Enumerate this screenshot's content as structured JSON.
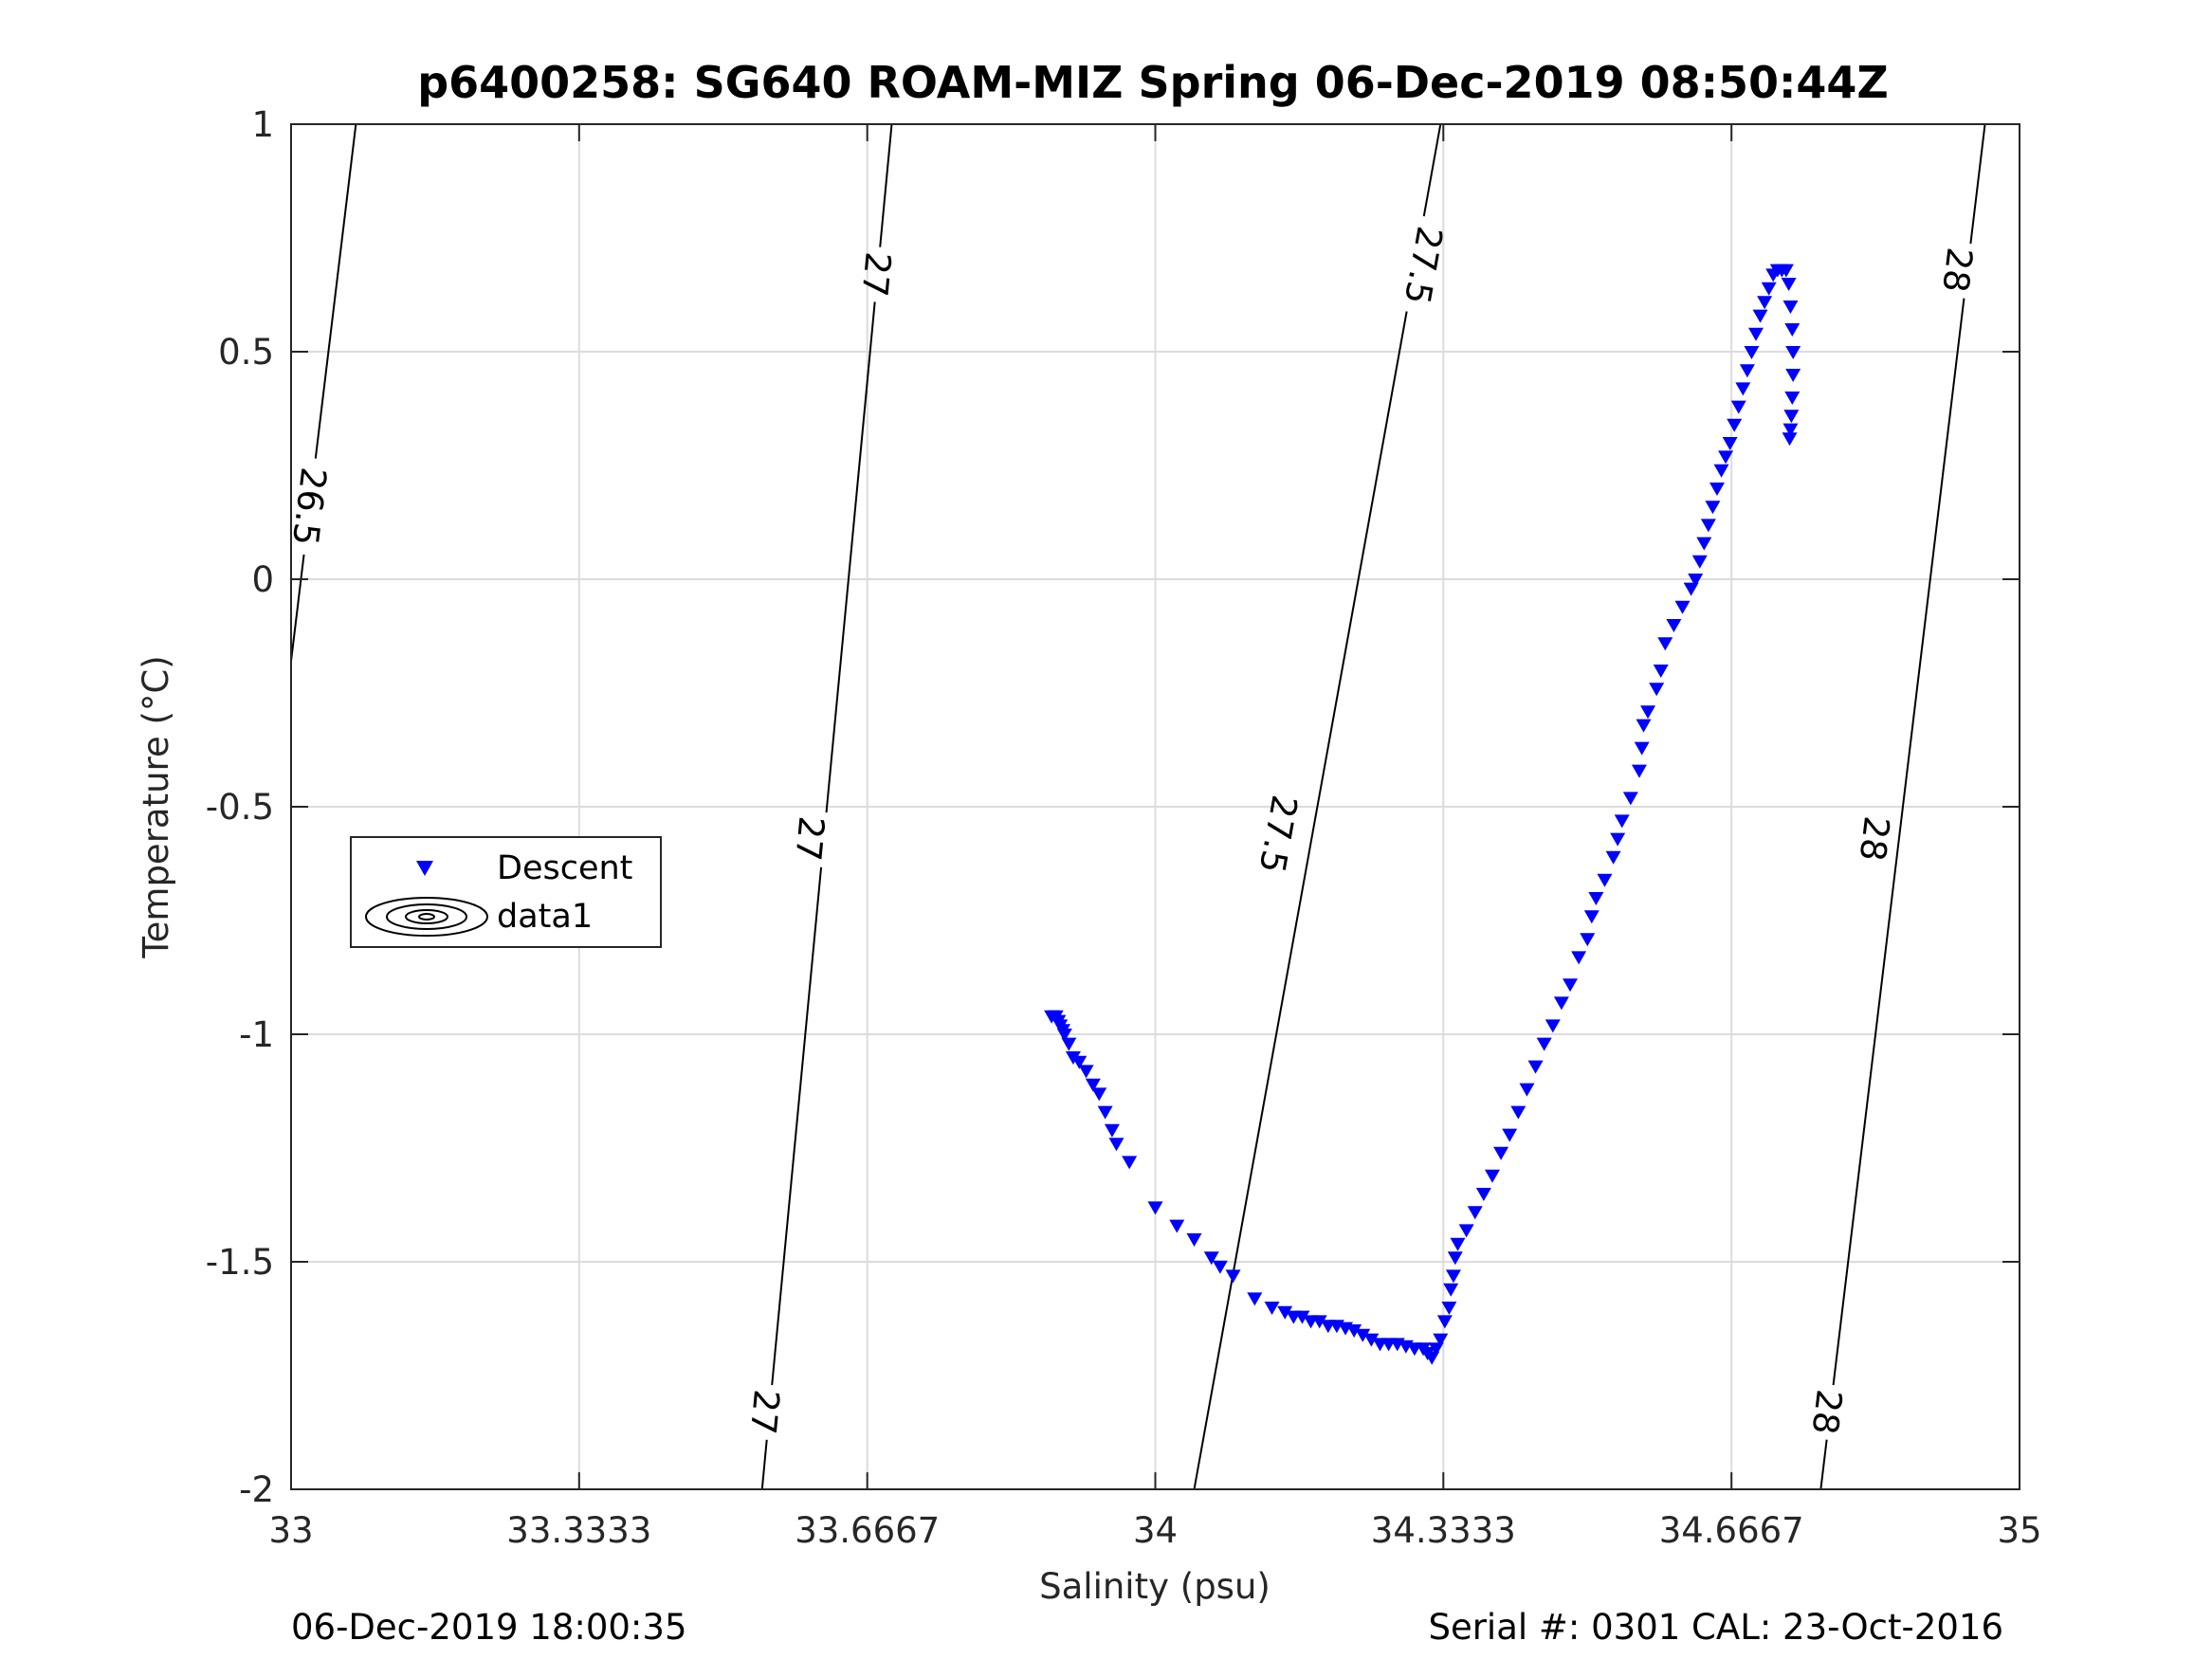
{
  "chart_data": {
    "type": "scatter",
    "title": "p6400258: SG640 ROAM-MIZ Spring 06-Dec-2019 08:50:44Z",
    "xlabel": "Salinity (psu)",
    "ylabel": "Temperature (°C)",
    "xlim": [
      33,
      35
    ],
    "ylim": [
      -2,
      1
    ],
    "xticks": [
      33,
      33.3333,
      33.6667,
      34,
      34.3333,
      34.6667,
      35
    ],
    "xtick_labels": [
      "33",
      "33.3333",
      "33.6667",
      "34",
      "34.3333",
      "34.6667",
      "35"
    ],
    "yticks": [
      -2,
      -1.5,
      -1,
      -0.5,
      0,
      0.5,
      1
    ],
    "ytick_labels": [
      "-2",
      "-1.5",
      "-1",
      "-0.5",
      "0",
      "0.5",
      "1"
    ],
    "grid": true,
    "legend_position": "middle-left",
    "legend": [
      "Descent",
      "data1"
    ],
    "footer_left": "06-Dec-2019 18:00:35",
    "footer_right": "Serial #: 0301  CAL: 23-Oct-2016",
    "series": [
      {
        "name": "Descent",
        "marker": "down-triangle",
        "color": "#0000ff",
        "points": [
          [
            33.88,
            -0.96
          ],
          [
            33.885,
            -0.96
          ],
          [
            33.888,
            -0.97
          ],
          [
            33.89,
            -0.98
          ],
          [
            33.893,
            -0.99
          ],
          [
            33.895,
            -1.0
          ],
          [
            33.9,
            -1.02
          ],
          [
            33.905,
            -1.05
          ],
          [
            33.912,
            -1.06
          ],
          [
            33.92,
            -1.08
          ],
          [
            33.928,
            -1.11
          ],
          [
            33.935,
            -1.13
          ],
          [
            33.942,
            -1.17
          ],
          [
            33.95,
            -1.21
          ],
          [
            33.955,
            -1.24
          ],
          [
            33.97,
            -1.28
          ],
          [
            34.0,
            -1.38
          ],
          [
            34.025,
            -1.42
          ],
          [
            34.045,
            -1.45
          ],
          [
            34.065,
            -1.49
          ],
          [
            34.075,
            -1.51
          ],
          [
            34.09,
            -1.53
          ],
          [
            34.115,
            -1.58
          ],
          [
            34.135,
            -1.6
          ],
          [
            34.15,
            -1.61
          ],
          [
            34.16,
            -1.62
          ],
          [
            34.17,
            -1.62
          ],
          [
            34.18,
            -1.63
          ],
          [
            34.19,
            -1.63
          ],
          [
            34.2,
            -1.64
          ],
          [
            34.21,
            -1.64
          ],
          [
            34.22,
            -1.645
          ],
          [
            34.23,
            -1.65
          ],
          [
            34.24,
            -1.66
          ],
          [
            34.25,
            -1.67
          ],
          [
            34.26,
            -1.68
          ],
          [
            34.27,
            -1.68
          ],
          [
            34.28,
            -1.68
          ],
          [
            34.29,
            -1.685
          ],
          [
            34.3,
            -1.69
          ],
          [
            34.31,
            -1.69
          ],
          [
            34.315,
            -1.7
          ],
          [
            34.32,
            -1.71
          ],
          [
            34.325,
            -1.69
          ],
          [
            34.33,
            -1.67
          ],
          [
            34.335,
            -1.63
          ],
          [
            34.34,
            -1.6
          ],
          [
            34.342,
            -1.56
          ],
          [
            34.345,
            -1.53
          ],
          [
            34.347,
            -1.49
          ],
          [
            34.35,
            -1.46
          ],
          [
            34.36,
            -1.43
          ],
          [
            34.37,
            -1.39
          ],
          [
            34.38,
            -1.35
          ],
          [
            34.39,
            -1.31
          ],
          [
            34.4,
            -1.26
          ],
          [
            34.41,
            -1.22
          ],
          [
            34.42,
            -1.17
          ],
          [
            34.43,
            -1.12
          ],
          [
            34.44,
            -1.07
          ],
          [
            34.45,
            -1.02
          ],
          [
            34.46,
            -0.98
          ],
          [
            34.47,
            -0.93
          ],
          [
            34.48,
            -0.89
          ],
          [
            34.49,
            -0.83
          ],
          [
            34.5,
            -0.79
          ],
          [
            34.505,
            -0.74
          ],
          [
            34.51,
            -0.7
          ],
          [
            34.52,
            -0.66
          ],
          [
            34.53,
            -0.61
          ],
          [
            34.535,
            -0.57
          ],
          [
            34.54,
            -0.53
          ],
          [
            34.55,
            -0.48
          ],
          [
            34.56,
            -0.42
          ],
          [
            34.563,
            -0.37
          ],
          [
            34.565,
            -0.32
          ],
          [
            34.57,
            -0.29
          ],
          [
            34.58,
            -0.24
          ],
          [
            34.585,
            -0.2
          ],
          [
            34.59,
            -0.14
          ],
          [
            34.6,
            -0.1
          ],
          [
            34.61,
            -0.06
          ],
          [
            34.62,
            -0.02
          ],
          [
            34.625,
            0.0
          ],
          [
            34.63,
            0.04
          ],
          [
            34.635,
            0.08
          ],
          [
            34.64,
            0.12
          ],
          [
            34.645,
            0.16
          ],
          [
            34.65,
            0.2
          ],
          [
            34.655,
            0.24
          ],
          [
            34.66,
            0.27
          ],
          [
            34.665,
            0.3
          ],
          [
            34.67,
            0.34
          ],
          [
            34.675,
            0.38
          ],
          [
            34.68,
            0.42
          ],
          [
            34.685,
            0.46
          ],
          [
            34.69,
            0.5
          ],
          [
            34.695,
            0.54
          ],
          [
            34.7,
            0.58
          ],
          [
            34.705,
            0.61
          ],
          [
            34.71,
            0.64
          ],
          [
            34.715,
            0.67
          ],
          [
            34.72,
            0.68
          ],
          [
            34.725,
            0.68
          ],
          [
            34.73,
            0.68
          ],
          [
            34.733,
            0.65
          ],
          [
            34.735,
            0.6
          ],
          [
            34.737,
            0.55
          ],
          [
            34.738,
            0.5
          ],
          [
            34.738,
            0.45
          ],
          [
            34.737,
            0.4
          ],
          [
            34.736,
            0.36
          ],
          [
            34.735,
            0.33
          ],
          [
            34.734,
            0.31
          ]
        ]
      },
      {
        "name": "data1",
        "type": "contour",
        "contours": [
          {
            "level": "26.5",
            "line": [
              [
                33.0,
                -0.18
              ],
              [
                33.075,
                1.0
              ]
            ],
            "labels": [
              {
                "text": "26.5",
                "at": [
                  33.021,
                  0.16
                ]
              }
            ]
          },
          {
            "level": "27",
            "line": [
              [
                33.545,
                -2.0
              ],
              [
                33.695,
                1.0
              ]
            ],
            "labels": [
              {
                "text": "27",
                "at": [
                  33.548,
                  -1.83
                ]
              },
              {
                "text": "27",
                "at": [
                  33.6,
                  -0.57
                ]
              },
              {
                "text": "27",
                "at": [
                  33.677,
                  0.67
                ]
              }
            ]
          },
          {
            "level": "27.5",
            "line": [
              [
                34.045,
                -2.0
              ],
              [
                34.33,
                1.0
              ]
            ],
            "labels": [
              {
                "text": "27.5",
                "at": [
                  34.142,
                  -0.56
                ]
              },
              {
                "text": "27.5",
                "at": [
                  34.31,
                  0.69
                ]
              }
            ]
          },
          {
            "level": "28",
            "line": [
              [
                34.77,
                -2.0
              ],
              [
                34.96,
                1.0
              ]
            ],
            "labels": [
              {
                "text": "28",
                "at": [
                  34.777,
                  -1.83
                ]
              },
              {
                "text": "28",
                "at": [
                  34.832,
                  -0.57
                ]
              },
              {
                "text": "28",
                "at": [
                  34.928,
                  0.68
                ]
              }
            ]
          }
        ]
      }
    ]
  }
}
